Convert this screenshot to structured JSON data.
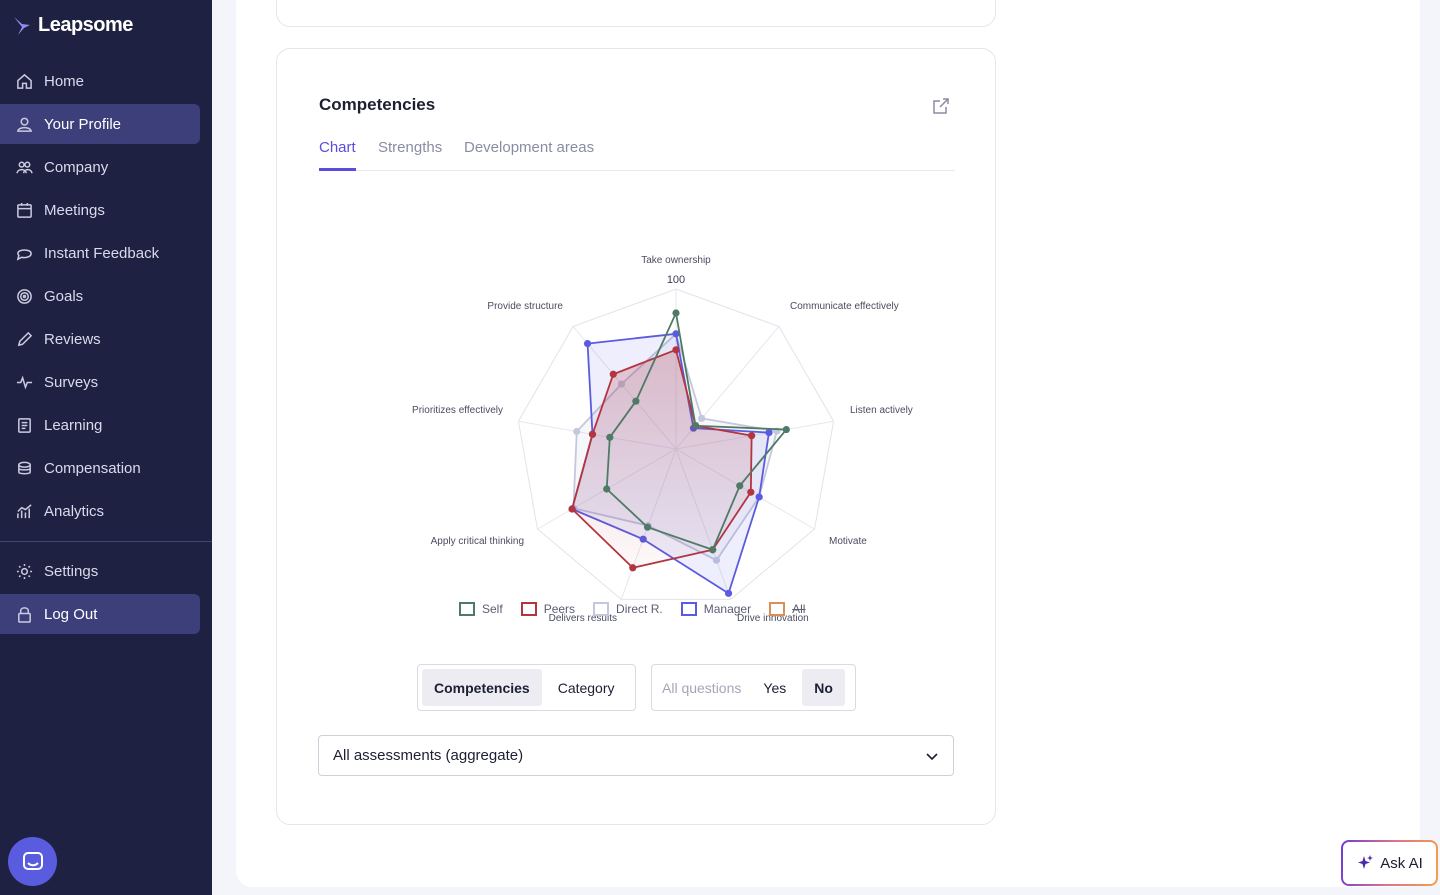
{
  "app": {
    "name": "Leapsome"
  },
  "sidebar": {
    "items": [
      {
        "label": "Home",
        "icon": "home-icon"
      },
      {
        "label": "Your Profile",
        "icon": "user-icon",
        "active": true
      },
      {
        "label": "Company",
        "icon": "users-icon"
      },
      {
        "label": "Meetings",
        "icon": "calendar-icon"
      },
      {
        "label": "Instant Feedback",
        "icon": "chat-icon"
      },
      {
        "label": "Goals",
        "icon": "target-icon"
      },
      {
        "label": "Reviews",
        "icon": "pencil-icon"
      },
      {
        "label": "Surveys",
        "icon": "pulse-icon"
      },
      {
        "label": "Learning",
        "icon": "book-icon"
      },
      {
        "label": "Compensation",
        "icon": "coins-icon"
      },
      {
        "label": "Analytics",
        "icon": "chart-icon"
      }
    ],
    "bottom_items": [
      {
        "label": "Settings",
        "icon": "gear-icon"
      },
      {
        "label": "Log Out",
        "icon": "lock-icon"
      }
    ]
  },
  "card": {
    "title": "Competencies",
    "tabs": [
      "Chart",
      "Strengths",
      "Development areas"
    ],
    "active_tab": "Chart"
  },
  "chart_data": {
    "type": "radar",
    "max_label": "100",
    "axes": [
      "Take ownership",
      "Communicate effectively",
      "Listen actively",
      "Motivate",
      "Drive innovation",
      "Delivers results",
      "Apply critical thinking",
      "Prioritizes effectively",
      "Provide structure"
    ],
    "max": 100,
    "series": [
      {
        "name": "Self",
        "color": "#4f7a66",
        "values": [
          85,
          19,
          70,
          46,
          67,
          52,
          50,
          42,
          39
        ]
      },
      {
        "name": "Peers",
        "color": "#b3353f",
        "values": [
          62,
          19,
          48,
          54,
          67,
          79,
          75,
          53,
          61
        ]
      },
      {
        "name": "Direct R.",
        "color": "#c5c8dc",
        "values": [
          72,
          25,
          64,
          60,
          74,
          51,
          74,
          63,
          53
        ]
      },
      {
        "name": "Manager",
        "color": "#5b5be0",
        "values": [
          72,
          17,
          59,
          60,
          96,
          60,
          75,
          53,
          86
        ]
      },
      {
        "name": "All",
        "color": "#d98f5a",
        "values": [],
        "hidden": true
      }
    ]
  },
  "toggles": {
    "group1": [
      "Competencies",
      "Category"
    ],
    "group1_active": "Competencies",
    "group2": [
      "All questions",
      "Yes",
      "No"
    ],
    "group2_active": "No"
  },
  "select": {
    "value": "All assessments (aggregate)"
  },
  "ask_ai": {
    "label": "Ask AI"
  }
}
